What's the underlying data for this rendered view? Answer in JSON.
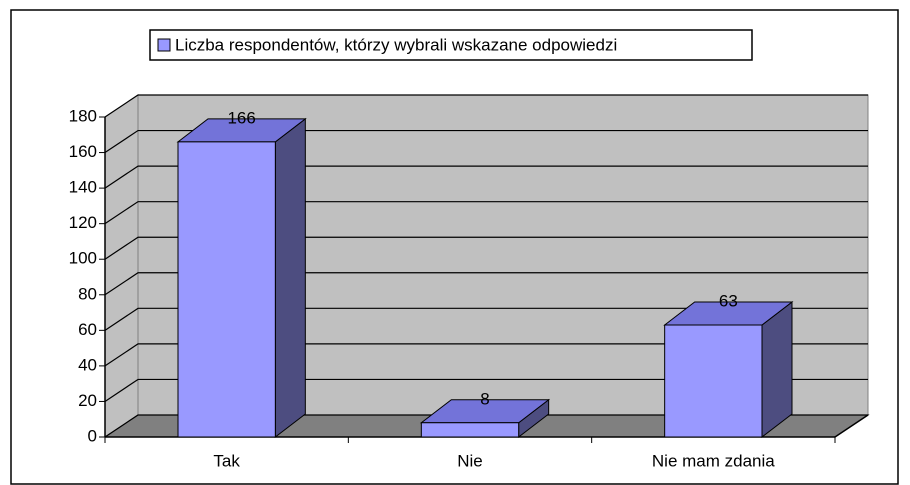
{
  "chart_data": {
    "type": "bar3d",
    "categories": [
      "Tak",
      "Nie",
      "Nie mam zdania"
    ],
    "series": [
      {
        "name": "Liczba respondentów, którzy wybrali wskazane odpowiedzi",
        "color": "#9999ff",
        "values": [
          166,
          8,
          63
        ]
      }
    ],
    "ylim": [
      0,
      180
    ],
    "yticks": [
      0,
      20,
      40,
      60,
      80,
      100,
      120,
      140,
      160,
      180
    ],
    "grid": true,
    "legend": "top"
  }
}
